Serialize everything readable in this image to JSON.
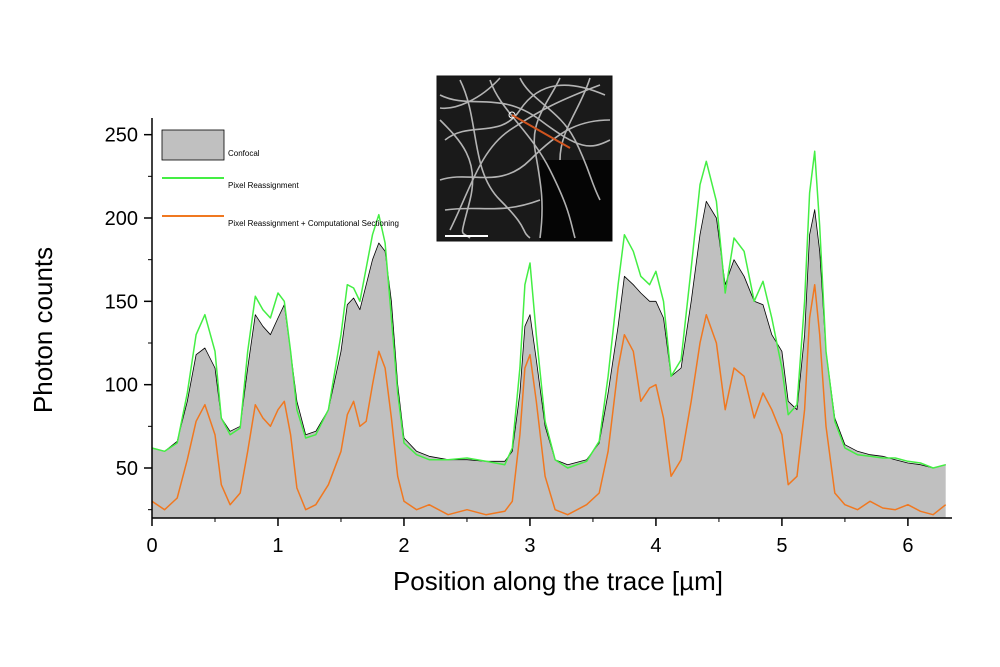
{
  "chart_data": {
    "type": "area",
    "xlabel": "Position along the trace [µm]",
    "ylabel": "Photon counts",
    "xlim": [
      0,
      6.35
    ],
    "ylim": [
      20,
      260
    ],
    "x_ticks": [
      0,
      1,
      2,
      3,
      4,
      5,
      6
    ],
    "y_ticks": [
      50,
      100,
      150,
      200,
      250
    ],
    "legend_position": "top-left",
    "grid": false,
    "series": [
      {
        "name": "Confocal",
        "style": "area",
        "color": "#000000",
        "fill": "#c0c0c0",
        "x": [
          0,
          0.1,
          0.2,
          0.28,
          0.35,
          0.42,
          0.5,
          0.55,
          0.62,
          0.7,
          0.76,
          0.82,
          0.88,
          0.94,
          1.0,
          1.05,
          1.1,
          1.15,
          1.22,
          1.3,
          1.4,
          1.5,
          1.55,
          1.6,
          1.65,
          1.7,
          1.75,
          1.8,
          1.85,
          1.9,
          1.95,
          2.0,
          2.1,
          2.2,
          2.35,
          2.5,
          2.65,
          2.8,
          2.86,
          2.92,
          2.96,
          3.0,
          3.05,
          3.12,
          3.2,
          3.3,
          3.45,
          3.55,
          3.62,
          3.7,
          3.75,
          3.82,
          3.88,
          3.95,
          4.0,
          4.06,
          4.12,
          4.2,
          4.28,
          4.35,
          4.4,
          4.48,
          4.55,
          4.62,
          4.7,
          4.78,
          4.85,
          4.92,
          5.0,
          5.05,
          5.12,
          5.18,
          5.22,
          5.26,
          5.3,
          5.35,
          5.42,
          5.5,
          5.6,
          5.7,
          5.8,
          5.9,
          6.0,
          6.1,
          6.2,
          6.3
        ],
        "values": [
          62,
          60,
          66,
          90,
          118,
          122,
          110,
          80,
          72,
          75,
          110,
          142,
          135,
          130,
          140,
          148,
          120,
          90,
          70,
          72,
          85,
          120,
          148,
          152,
          145,
          160,
          175,
          185,
          180,
          150,
          100,
          68,
          60,
          57,
          55,
          55,
          54,
          54,
          60,
          95,
          135,
          142,
          115,
          75,
          55,
          52,
          55,
          65,
          95,
          135,
          165,
          160,
          155,
          150,
          150,
          140,
          105,
          110,
          150,
          190,
          210,
          200,
          160,
          175,
          165,
          150,
          148,
          130,
          120,
          90,
          85,
          130,
          190,
          205,
          180,
          120,
          80,
          64,
          60,
          58,
          57,
          55,
          53,
          52,
          50,
          52
        ]
      },
      {
        "name": "Pixel Reassignment",
        "style": "line",
        "color": "#44ee44",
        "x": [
          0,
          0.1,
          0.2,
          0.28,
          0.35,
          0.42,
          0.5,
          0.55,
          0.62,
          0.7,
          0.76,
          0.82,
          0.88,
          0.94,
          1.0,
          1.05,
          1.1,
          1.15,
          1.22,
          1.3,
          1.4,
          1.5,
          1.55,
          1.6,
          1.65,
          1.7,
          1.75,
          1.8,
          1.85,
          1.9,
          1.95,
          2.0,
          2.1,
          2.2,
          2.35,
          2.5,
          2.65,
          2.8,
          2.86,
          2.92,
          2.96,
          3.0,
          3.05,
          3.12,
          3.2,
          3.3,
          3.45,
          3.55,
          3.62,
          3.7,
          3.75,
          3.82,
          3.88,
          3.95,
          4.0,
          4.06,
          4.12,
          4.2,
          4.28,
          4.35,
          4.4,
          4.48,
          4.55,
          4.62,
          4.7,
          4.78,
          4.85,
          4.92,
          5.0,
          5.05,
          5.12,
          5.18,
          5.22,
          5.26,
          5.3,
          5.35,
          5.42,
          5.5,
          5.6,
          5.7,
          5.8,
          5.9,
          6.0,
          6.1,
          6.2,
          6.3
        ],
        "values": [
          62,
          60,
          65,
          95,
          130,
          142,
          120,
          80,
          70,
          74,
          120,
          153,
          145,
          140,
          155,
          150,
          120,
          85,
          68,
          70,
          85,
          130,
          160,
          158,
          150,
          170,
          190,
          202,
          185,
          140,
          95,
          65,
          58,
          55,
          55,
          56,
          54,
          52,
          62,
          110,
          160,
          173,
          130,
          78,
          55,
          50,
          54,
          66,
          105,
          160,
          190,
          180,
          165,
          160,
          168,
          150,
          105,
          115,
          170,
          220,
          234,
          210,
          155,
          188,
          180,
          150,
          162,
          140,
          110,
          82,
          88,
          150,
          215,
          240,
          195,
          120,
          78,
          62,
          58,
          57,
          56,
          56,
          54,
          53,
          50,
          52
        ]
      },
      {
        "name": "Pixel Reassignment  + Computational Sectioning",
        "style": "line",
        "color": "#f07820",
        "x": [
          0,
          0.1,
          0.2,
          0.28,
          0.35,
          0.42,
          0.5,
          0.55,
          0.62,
          0.7,
          0.76,
          0.82,
          0.88,
          0.94,
          1.0,
          1.05,
          1.1,
          1.15,
          1.22,
          1.3,
          1.4,
          1.5,
          1.55,
          1.6,
          1.65,
          1.7,
          1.75,
          1.8,
          1.85,
          1.9,
          1.95,
          2.0,
          2.1,
          2.2,
          2.35,
          2.5,
          2.65,
          2.8,
          2.86,
          2.92,
          2.96,
          3.0,
          3.05,
          3.12,
          3.2,
          3.3,
          3.45,
          3.55,
          3.62,
          3.7,
          3.75,
          3.82,
          3.88,
          3.95,
          4.0,
          4.06,
          4.12,
          4.2,
          4.28,
          4.35,
          4.4,
          4.48,
          4.55,
          4.62,
          4.7,
          4.78,
          4.85,
          4.92,
          5.0,
          5.05,
          5.12,
          5.18,
          5.22,
          5.26,
          5.3,
          5.35,
          5.42,
          5.5,
          5.6,
          5.7,
          5.8,
          5.9,
          6.0,
          6.1,
          6.2,
          6.3
        ],
        "values": [
          30,
          25,
          32,
          55,
          78,
          88,
          70,
          40,
          28,
          35,
          60,
          88,
          80,
          75,
          85,
          90,
          70,
          38,
          25,
          28,
          40,
          60,
          82,
          90,
          75,
          78,
          100,
          120,
          110,
          80,
          45,
          30,
          25,
          28,
          22,
          25,
          22,
          24,
          30,
          70,
          110,
          118,
          90,
          45,
          25,
          22,
          28,
          35,
          60,
          110,
          130,
          120,
          90,
          98,
          100,
          80,
          45,
          55,
          90,
          125,
          142,
          125,
          85,
          110,
          105,
          80,
          95,
          85,
          70,
          40,
          45,
          85,
          140,
          160,
          130,
          75,
          35,
          28,
          25,
          30,
          26,
          25,
          28,
          24,
          22,
          28
        ]
      }
    ]
  }
}
